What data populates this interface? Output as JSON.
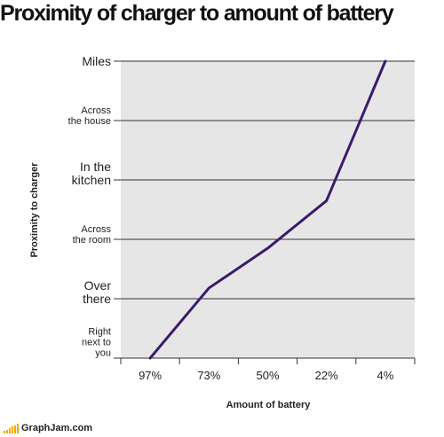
{
  "chart_data": {
    "type": "line",
    "title": "Proximity of charger to amount of battery",
    "xlabel": "Amount of battery",
    "ylabel": "Proximity to charger",
    "categories": [
      "97%",
      "73%",
      "50%",
      "22%",
      "4%"
    ],
    "y_levels": [
      [
        "Right",
        "next to",
        "you"
      ],
      [
        "Over",
        "there"
      ],
      [
        "Across",
        "the room"
      ],
      [
        "In the",
        "kitchen"
      ],
      [
        "Across",
        "the house"
      ],
      [
        "Miles"
      ]
    ],
    "ylim": [
      0,
      5
    ],
    "series": [
      {
        "color": "#3b1a6b",
        "points": [
          {
            "x": "97%",
            "y": 0
          },
          {
            "x": "73%",
            "y": 1.18
          },
          {
            "x": "50%",
            "y": 1.85
          },
          {
            "x": "22%",
            "y": 2.65
          },
          {
            "x": "4%",
            "y": 5
          }
        ]
      }
    ],
    "grid": true,
    "colors": {
      "plot_background": "#e6e6e6",
      "gridline": "#333333",
      "line": "#3b1a6b"
    }
  },
  "footer": {
    "site": "GraphJam.com",
    "bar_levels": [
      0.25,
      0.4,
      0.55,
      0.7,
      0.85,
      1.0
    ],
    "bar_color": "#f5a400"
  }
}
